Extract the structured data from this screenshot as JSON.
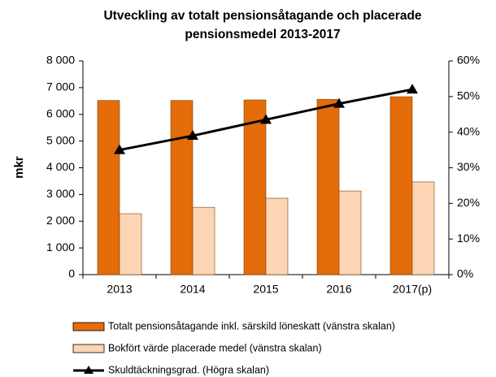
{
  "chart_data": {
    "type": "bar",
    "title": "Utveckling av totalt pensionsåtagande och placerade pensionsmedel 2013-2017",
    "y_label": "mkr",
    "categories": [
      "2013",
      "2014",
      "2015",
      "2016",
      "2017(p)"
    ],
    "series": [
      {
        "name": "Totalt pensionsåtagande inkl. särskild löneskatt (vänstra skalan)",
        "color": "#e46c0a",
        "values": [
          6520,
          6520,
          6540,
          6560,
          6660
        ]
      },
      {
        "name": "Bokfört värde placerade medel (vänstra skalan)",
        "color": "#fcd5b5",
        "values": [
          2280,
          2520,
          2860,
          3130,
          3470
        ]
      },
      {
        "name": "Skuldtäckningsgrad. (Högra skalan)",
        "color": "#000000",
        "type": "line",
        "axis": "y2",
        "values": [
          35,
          39,
          43.5,
          48,
          52
        ]
      }
    ],
    "ylim": [
      0,
      8000
    ],
    "yticks": [
      0,
      {
        "value": 1000,
        "label": "1 000"
      },
      {
        "value": 2000,
        "label": "2 000"
      },
      {
        "value": 3000,
        "label": "3 000"
      },
      {
        "value": 4000,
        "label": "4 000"
      },
      {
        "value": 5000,
        "label": "5 000"
      },
      {
        "value": 6000,
        "label": "6 000"
      },
      {
        "value": 7000,
        "label": "7 000"
      },
      {
        "value": 8000,
        "label": "8 000"
      }
    ],
    "y2lim": [
      0,
      60
    ],
    "y2ticks": [
      {
        "value": 0,
        "label": "0%"
      },
      {
        "value": 10,
        "label": "10%"
      },
      {
        "value": 20,
        "label": "20%"
      },
      {
        "value": 30,
        "label": "30%"
      },
      {
        "value": 40,
        "label": "40%"
      },
      {
        "value": 50,
        "label": "50%"
      },
      {
        "value": 60,
        "label": "60%"
      }
    ],
    "grid": false,
    "legend": "bottom"
  }
}
